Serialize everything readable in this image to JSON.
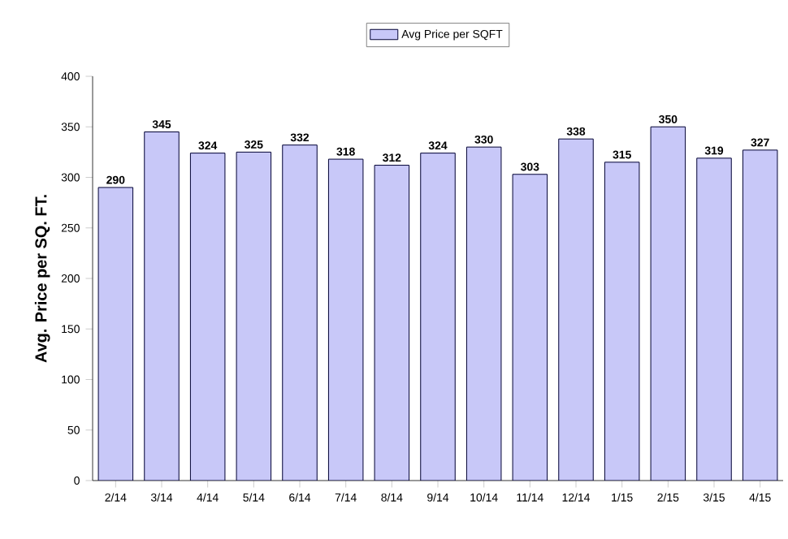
{
  "chart_data": {
    "type": "bar",
    "ylabel": "Avg. Price per SQ. FT.",
    "categories": [
      "2/14",
      "3/14",
      "4/14",
      "5/14",
      "6/14",
      "7/14",
      "8/14",
      "9/14",
      "10/14",
      "11/14",
      "12/14",
      "1/15",
      "2/15",
      "3/15",
      "4/15"
    ],
    "series": [
      {
        "name": "Avg Price per SQFT",
        "color": "#c8c8f8",
        "values": [
          290,
          345,
          324,
          325,
          332,
          318,
          312,
          324,
          330,
          303,
          338,
          315,
          350,
          319,
          327
        ]
      }
    ],
    "ylim": [
      0,
      400
    ],
    "yticks": [
      0,
      50,
      100,
      150,
      200,
      250,
      300,
      350,
      400
    ],
    "data_labels": true,
    "legend": "top",
    "grid": false
  }
}
